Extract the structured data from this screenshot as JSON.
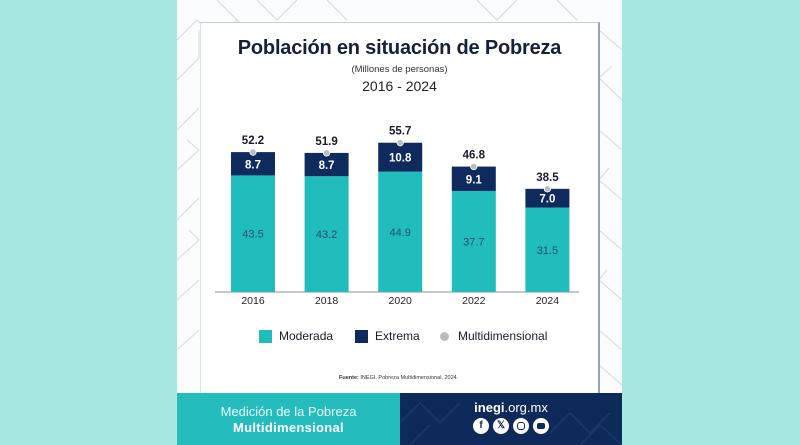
{
  "title": "Población en situación de Pobreza",
  "subtitle": "(Millones de personas)",
  "range": "2016 - 2024",
  "colors": {
    "moderada": "#21bdbd",
    "extrema": "#0f2a5c",
    "multidimensional": "#b9bdc3",
    "background": "#a6e8e0"
  },
  "chart_data": {
    "type": "bar",
    "stacked": true,
    "title": "Población en situación de Pobreza",
    "subtitle": "(Millones de personas)",
    "xlabel": "",
    "ylabel": "",
    "categories": [
      "2016",
      "2018",
      "2020",
      "2022",
      "2024"
    ],
    "series": [
      {
        "name": "Moderada",
        "values": [
          43.5,
          43.2,
          44.9,
          37.7,
          31.5
        ]
      },
      {
        "name": "Extrema",
        "values": [
          8.7,
          8.7,
          10.8,
          9.1,
          7.0
        ]
      }
    ],
    "totals": {
      "name": "Multidimensional",
      "values": [
        52.2,
        51.9,
        55.7,
        46.8,
        38.5
      ]
    },
    "ylim": [
      0,
      55.7
    ],
    "grid": false,
    "legend_position": "bottom"
  },
  "legend": [
    {
      "label": "Moderada",
      "icon": "square"
    },
    {
      "label": "Extrema",
      "icon": "square"
    },
    {
      "label": "Multidimensional",
      "icon": "circle"
    }
  ],
  "source": {
    "label": "Fuente:",
    "text": "INEGI. Pobreza Multidimensional, 2024."
  },
  "footer": {
    "line1": "Medición de la Pobreza",
    "line2": "Multidimensional",
    "site_bold": "inegi",
    "site_rest": ".org.mx",
    "social_icons": [
      "facebook-icon",
      "x-icon",
      "instagram-icon",
      "youtube-icon"
    ]
  }
}
